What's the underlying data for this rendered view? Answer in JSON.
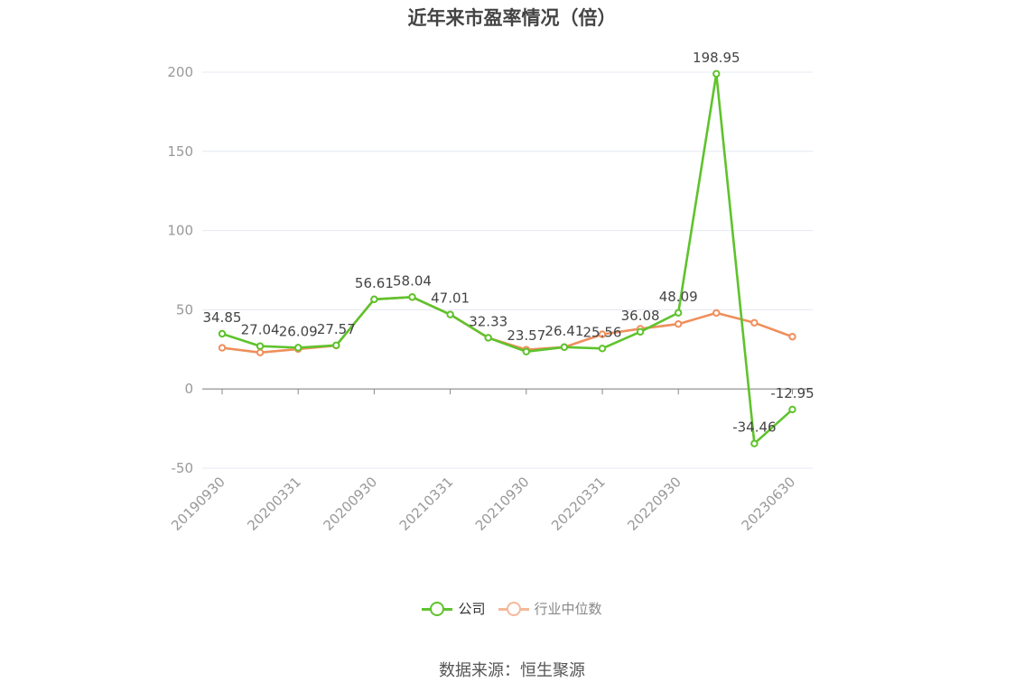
{
  "colors": {
    "company": "#5ec32c",
    "industry": "#ef8f5c",
    "industry_legend": "#f5b899",
    "grid": "#e4e8f0",
    "axis": "#888888",
    "tick_text": "#999999",
    "label_text": "#444444"
  },
  "legend": {
    "company_label": "公司",
    "industry_label": "行业中位数",
    "company_icon": "circle-line-icon",
    "industry_icon": "circle-line-icon"
  },
  "source_text": "数据来源：恒生聚源",
  "chart_data": {
    "type": "line",
    "title": "近年来市盈率情况（倍）",
    "xlabel": "",
    "ylabel": "",
    "ylim": [
      -50,
      200
    ],
    "yticks": [
      -50,
      0,
      50,
      100,
      150,
      200
    ],
    "grid": true,
    "legend_position": "bottom",
    "x": [
      "20190930",
      "20191231",
      "20200331",
      "20200630",
      "20200930",
      "20201231",
      "20210331",
      "20210630",
      "20210930",
      "20211231",
      "20220331",
      "20220630",
      "20220930",
      "20221231",
      "20230331",
      "20230630"
    ],
    "x_tick_labels": [
      "20190930",
      "20200331",
      "20200930",
      "20210331",
      "20210930",
      "20220331",
      "20220930",
      "20230630"
    ],
    "series": [
      {
        "name": "公司",
        "values": [
          34.85,
          27.04,
          26.09,
          27.57,
          56.61,
          58.04,
          47.01,
          32.33,
          23.57,
          26.41,
          25.56,
          36.08,
          48.09,
          198.95,
          -34.46,
          -12.95
        ],
        "labels": [
          "34.85",
          "27.04",
          "26.09",
          "27.57",
          "56.61",
          "58.04",
          "47.01",
          "32.33",
          "23.57",
          "26.41",
          "25.56",
          "36.08",
          "48.09",
          "198.95",
          "-34.46",
          "-12.95"
        ]
      },
      {
        "name": "行业中位数",
        "values": [
          26.0,
          23.0,
          25.2,
          27.4,
          56.6,
          58.0,
          47.0,
          32.3,
          24.8,
          26.4,
          34.5,
          38.0,
          41.0,
          48.0,
          41.8,
          33.0
        ]
      }
    ]
  }
}
